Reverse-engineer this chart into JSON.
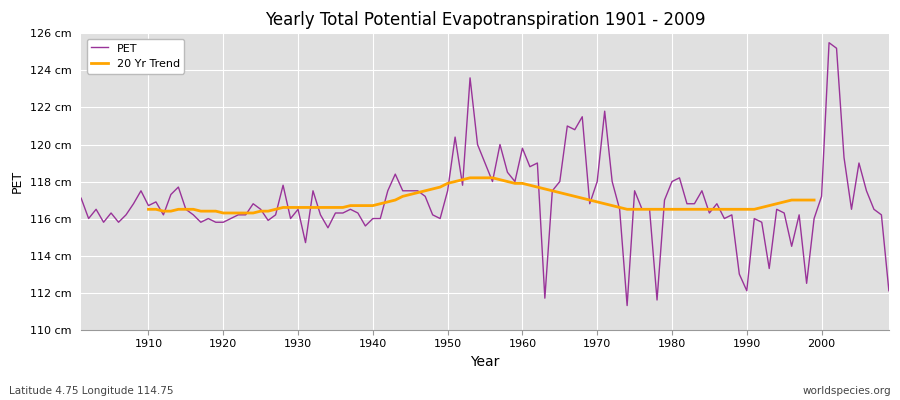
{
  "title": "Yearly Total Potential Evapotranspiration 1901 - 2009",
  "xlabel": "Year",
  "ylabel": "PET",
  "subtitle_left": "Latitude 4.75 Longitude 114.75",
  "subtitle_right": "worldspecies.org",
  "pet_color": "#993399",
  "trend_color": "#FFA500",
  "fig_facecolor": "#FFFFFF",
  "ax_facecolor": "#E0E0E0",
  "grid_color": "#FFFFFF",
  "ylim": [
    110,
    126
  ],
  "yticks": [
    110,
    112,
    114,
    116,
    118,
    120,
    122,
    124,
    126
  ],
  "ytick_labels": [
    "110 cm",
    "112 cm",
    "114 cm",
    "116 cm",
    "118 cm",
    "120 cm",
    "122 cm",
    "124 cm",
    "126 cm"
  ],
  "years": [
    1901,
    1902,
    1903,
    1904,
    1905,
    1906,
    1907,
    1908,
    1909,
    1910,
    1911,
    1912,
    1913,
    1914,
    1915,
    1916,
    1917,
    1918,
    1919,
    1920,
    1921,
    1922,
    1923,
    1924,
    1925,
    1926,
    1927,
    1928,
    1929,
    1930,
    1931,
    1932,
    1933,
    1934,
    1935,
    1936,
    1937,
    1938,
    1939,
    1940,
    1941,
    1942,
    1943,
    1944,
    1945,
    1946,
    1947,
    1948,
    1949,
    1950,
    1951,
    1952,
    1953,
    1954,
    1955,
    1956,
    1957,
    1958,
    1959,
    1960,
    1961,
    1962,
    1963,
    1964,
    1965,
    1966,
    1967,
    1968,
    1969,
    1970,
    1971,
    1972,
    1973,
    1974,
    1975,
    1976,
    1977,
    1978,
    1979,
    1980,
    1981,
    1982,
    1983,
    1984,
    1985,
    1986,
    1987,
    1988,
    1989,
    1990,
    1991,
    1992,
    1993,
    1994,
    1995,
    1996,
    1997,
    1998,
    1999,
    2000,
    2001,
    2002,
    2003,
    2004,
    2005,
    2006,
    2007,
    2008,
    2009
  ],
  "pet_values": [
    117.1,
    116.0,
    116.5,
    115.8,
    116.3,
    115.8,
    116.2,
    116.8,
    117.5,
    116.7,
    116.9,
    116.2,
    117.3,
    117.7,
    116.5,
    116.2,
    115.8,
    116.0,
    115.8,
    115.8,
    116.0,
    116.2,
    116.2,
    116.8,
    116.5,
    115.9,
    116.2,
    117.8,
    116.0,
    116.5,
    114.7,
    117.5,
    116.2,
    115.5,
    116.3,
    116.3,
    116.5,
    116.3,
    115.6,
    116.0,
    116.0,
    117.5,
    118.4,
    117.5,
    117.5,
    117.5,
    117.2,
    116.2,
    116.0,
    117.5,
    120.4,
    117.8,
    123.6,
    120.0,
    119.0,
    118.0,
    120.0,
    118.5,
    118.0,
    119.8,
    118.8,
    119.0,
    111.7,
    117.5,
    118.0,
    121.0,
    120.8,
    121.5,
    116.8,
    118.0,
    121.8,
    118.0,
    116.5,
    111.3,
    117.5,
    116.5,
    116.5,
    111.6,
    117.0,
    118.0,
    118.2,
    116.8,
    116.8,
    117.5,
    116.3,
    116.8,
    116.0,
    116.2,
    113.0,
    112.1,
    116.0,
    115.8,
    113.3,
    116.5,
    116.3,
    114.5,
    116.2,
    112.5,
    116.0,
    117.2,
    125.5,
    125.2,
    119.3,
    116.5,
    119.0,
    117.5,
    116.5,
    116.2,
    112.1
  ],
  "trend_values": [
    null,
    null,
    null,
    null,
    null,
    null,
    null,
    null,
    null,
    116.5,
    116.5,
    116.4,
    116.4,
    116.5,
    116.5,
    116.5,
    116.4,
    116.4,
    116.4,
    116.3,
    116.3,
    116.3,
    116.3,
    116.3,
    116.4,
    116.4,
    116.5,
    116.6,
    116.6,
    116.6,
    116.6,
    116.6,
    116.6,
    116.6,
    116.6,
    116.6,
    116.7,
    116.7,
    116.7,
    116.7,
    116.8,
    116.9,
    117.0,
    117.2,
    117.3,
    117.4,
    117.5,
    117.6,
    117.7,
    117.9,
    118.0,
    118.1,
    118.2,
    118.2,
    118.2,
    118.2,
    118.1,
    118.0,
    117.9,
    117.9,
    117.8,
    117.7,
    117.6,
    117.5,
    117.4,
    117.3,
    117.2,
    117.1,
    117.0,
    116.9,
    116.8,
    116.7,
    116.6,
    116.5,
    116.5,
    116.5,
    116.5,
    116.5,
    116.5,
    116.5,
    116.5,
    116.5,
    116.5,
    116.5,
    116.5,
    116.5,
    116.5,
    116.5,
    116.5,
    116.5,
    116.5,
    116.6,
    116.7,
    116.8,
    116.9,
    117.0,
    117.0,
    117.0,
    117.0
  ],
  "legend_pet_label": "PET",
  "legend_trend_label": "20 Yr Trend"
}
